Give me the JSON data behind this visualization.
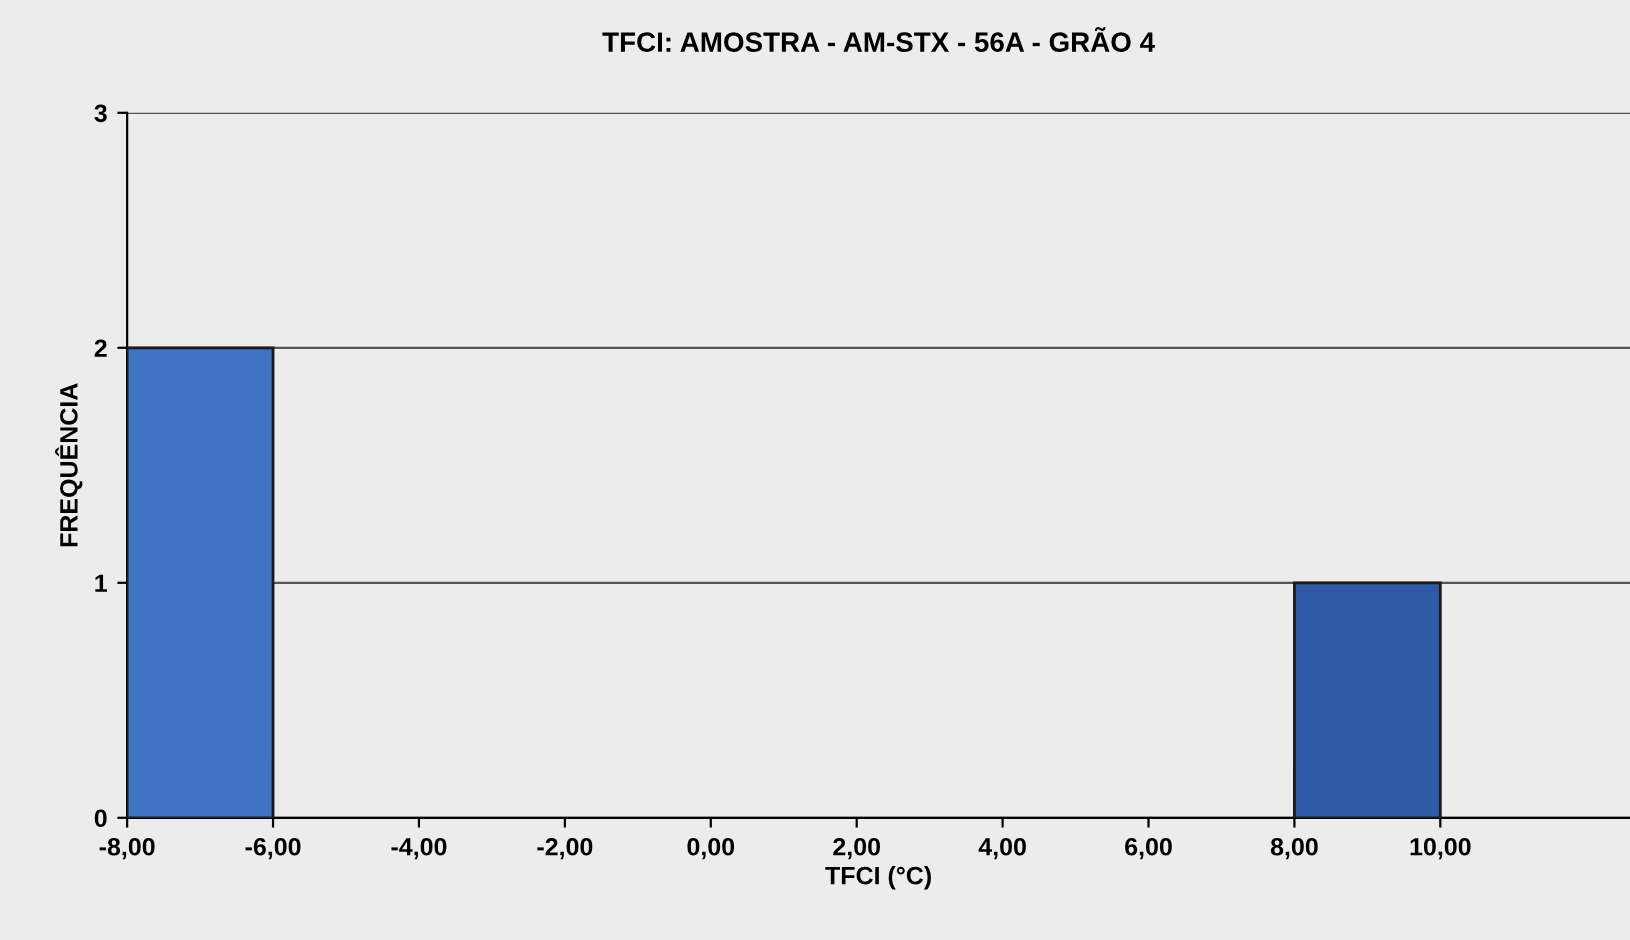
{
  "chart_data": {
    "type": "histogram",
    "title": "TFCI: AMOSTRA - AM-STX - 56A - GRÃO 4",
    "xlabel": "TFCI (°C)",
    "ylabel": "FREQUÊNCIA",
    "bins": [
      -8,
      -6,
      -4,
      -2,
      0,
      2,
      4,
      6,
      8,
      10
    ],
    "values": [
      2,
      0,
      0,
      0,
      0,
      0,
      0,
      0,
      1
    ],
    "colors": [
      "#3f74c2",
      "#3f74c2",
      "#3f74c2",
      "#3f74c2",
      "#3f74c2",
      "#3f74c2",
      "#3f74c2",
      "#3f74c2",
      "#2e5aa6"
    ],
    "xlim": [
      -8,
      12.6
    ],
    "xticks": [
      {
        "value": -8,
        "label": "-8,00"
      },
      {
        "value": -6,
        "label": "-6,00"
      },
      {
        "value": -4,
        "label": "-4,00"
      },
      {
        "value": -2,
        "label": "-2,00"
      },
      {
        "value": 0,
        "label": "0,00"
      },
      {
        "value": 2,
        "label": "2,00"
      },
      {
        "value": 4,
        "label": "4,00"
      },
      {
        "value": 6,
        "label": "6,00"
      },
      {
        "value": 8,
        "label": "8,00"
      },
      {
        "value": 10,
        "label": "10,00"
      }
    ],
    "ylim": [
      0,
      3
    ],
    "yticks": [
      0,
      1,
      2,
      3
    ],
    "grid": "y"
  }
}
